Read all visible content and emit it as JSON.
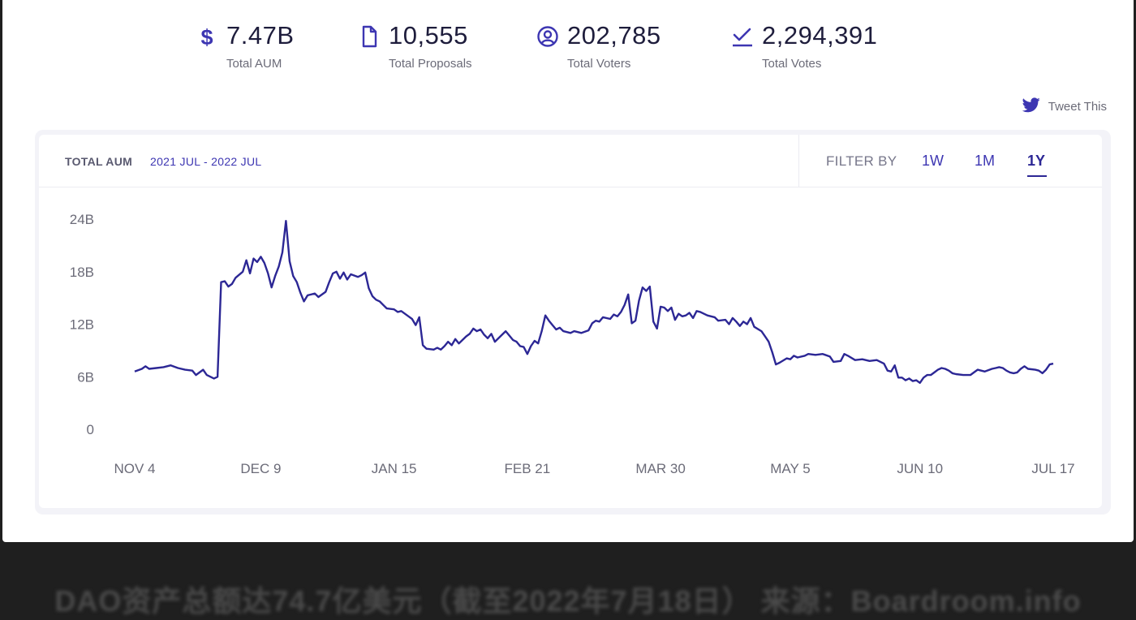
{
  "stats": [
    {
      "icon": "dollar-icon",
      "value": "7.47B",
      "label": "Total AUM"
    },
    {
      "icon": "document-icon",
      "value": "10,555",
      "label": "Total Proposals"
    },
    {
      "icon": "user-circle-icon",
      "value": "202,785",
      "label": "Total Voters"
    },
    {
      "icon": "checkmark-icon",
      "value": "2,294,391",
      "label": "Total Votes"
    }
  ],
  "tweet": {
    "label": "Tweet This",
    "icon": "twitter-icon"
  },
  "panel": {
    "title": "TOTAL AUM",
    "range": "2021 JUL - 2022 JUL",
    "filter_label": "FILTER BY",
    "filters": [
      "1W",
      "1M",
      "1Y"
    ],
    "active_filter": "1Y"
  },
  "caption": "DAO资产总额达74.7亿美元（截至2022年7月18日） 来源：Boardroom.info",
  "colors": {
    "accent": "#3d36b2",
    "line": "#2c2795",
    "text": "#1e1d3c",
    "muted": "#6b6b78"
  },
  "chart_data": {
    "type": "line",
    "title": "TOTAL AUM",
    "subtitle": "2021 JUL - 2022 JUL",
    "xlabel": "",
    "ylabel": "",
    "ylim": [
      0,
      24
    ],
    "yticks": [
      0,
      6,
      12,
      18,
      24
    ],
    "ytick_labels": [
      "0",
      "6B",
      "12B",
      "18B",
      "24B"
    ],
    "x_tick_labels": [
      "NOV 4",
      "DEC 9",
      "JAN 15",
      "FEB 21",
      "MAR 30",
      "MAY 5",
      "JUN 10",
      "JUL 17"
    ],
    "x_ticks": [
      "2021-11-04",
      "2021-12-09",
      "2022-01-15",
      "2022-02-21",
      "2022-03-30",
      "2022-05-05",
      "2022-06-10",
      "2022-07-17"
    ],
    "grid": false,
    "series": [
      {
        "values": [
          [
            "2021-11-04",
            6.6
          ],
          [
            "2021-11-06",
            6.9
          ],
          [
            "2021-11-07",
            7.2
          ],
          [
            "2021-11-08",
            6.9
          ],
          [
            "2021-11-10",
            7.0
          ],
          [
            "2021-11-12",
            7.1
          ],
          [
            "2021-11-14",
            7.3
          ],
          [
            "2021-11-16",
            7.0
          ],
          [
            "2021-11-18",
            6.8
          ],
          [
            "2021-11-20",
            6.7
          ],
          [
            "2021-11-21",
            6.2
          ],
          [
            "2021-11-23",
            6.8
          ],
          [
            "2021-11-24",
            6.2
          ],
          [
            "2021-11-26",
            5.8
          ],
          [
            "2021-11-27",
            6.0
          ],
          [
            "2021-11-28",
            16.8
          ],
          [
            "2021-11-29",
            16.9
          ],
          [
            "2021-11-30",
            16.3
          ],
          [
            "2021-12-01",
            16.6
          ],
          [
            "2021-12-02",
            17.3
          ],
          [
            "2021-12-04",
            18.0
          ],
          [
            "2021-12-05",
            19.3
          ],
          [
            "2021-12-06",
            17.8
          ],
          [
            "2021-12-07",
            19.5
          ],
          [
            "2021-12-08",
            19.1
          ],
          [
            "2021-12-09",
            19.7
          ],
          [
            "2021-12-10",
            19.0
          ],
          [
            "2021-12-11",
            17.8
          ],
          [
            "2021-12-12",
            16.2
          ],
          [
            "2021-12-13",
            17.5
          ],
          [
            "2021-12-14",
            18.6
          ],
          [
            "2021-12-15",
            20.2
          ],
          [
            "2021-12-16",
            23.8
          ],
          [
            "2021-12-17",
            19.2
          ],
          [
            "2021-12-18",
            17.5
          ],
          [
            "2021-12-19",
            16.8
          ],
          [
            "2021-12-20",
            15.6
          ],
          [
            "2021-12-21",
            14.6
          ],
          [
            "2021-12-22",
            15.3
          ],
          [
            "2021-12-24",
            15.5
          ],
          [
            "2021-12-25",
            15.1
          ],
          [
            "2021-12-27",
            15.7
          ],
          [
            "2021-12-28",
            16.8
          ],
          [
            "2021-12-29",
            17.8
          ],
          [
            "2021-12-30",
            18.0
          ],
          [
            "2021-12-31",
            17.2
          ],
          [
            "2022-01-01",
            17.9
          ],
          [
            "2022-01-02",
            17.1
          ],
          [
            "2022-01-03",
            17.7
          ],
          [
            "2022-01-05",
            17.4
          ],
          [
            "2022-01-06",
            17.6
          ],
          [
            "2022-01-07",
            17.9
          ],
          [
            "2022-01-08",
            16.1
          ],
          [
            "2022-01-09",
            15.2
          ],
          [
            "2022-01-10",
            14.8
          ],
          [
            "2022-01-11",
            14.6
          ],
          [
            "2022-01-12",
            14.2
          ],
          [
            "2022-01-13",
            13.8
          ],
          [
            "2022-01-15",
            13.7
          ],
          [
            "2022-01-16",
            13.4
          ],
          [
            "2022-01-17",
            13.5
          ],
          [
            "2022-01-19",
            12.9
          ],
          [
            "2022-01-20",
            12.6
          ],
          [
            "2022-01-21",
            11.9
          ],
          [
            "2022-01-22",
            12.8
          ],
          [
            "2022-01-23",
            9.6
          ],
          [
            "2022-01-24",
            9.2
          ],
          [
            "2022-01-26",
            9.1
          ],
          [
            "2022-01-27",
            9.3
          ],
          [
            "2022-01-28",
            9.1
          ],
          [
            "2022-01-29",
            9.5
          ],
          [
            "2022-01-30",
            10.0
          ],
          [
            "2022-01-31",
            9.6
          ],
          [
            "2022-02-01",
            10.3
          ],
          [
            "2022-02-02",
            9.8
          ],
          [
            "2022-02-04",
            10.6
          ],
          [
            "2022-02-05",
            10.9
          ],
          [
            "2022-02-06",
            11.5
          ],
          [
            "2022-02-07",
            11.2
          ],
          [
            "2022-02-08",
            11.4
          ],
          [
            "2022-02-09",
            10.8
          ],
          [
            "2022-02-10",
            10.4
          ],
          [
            "2022-02-11",
            10.9
          ],
          [
            "2022-02-12",
            10.0
          ],
          [
            "2022-02-14",
            10.8
          ],
          [
            "2022-02-15",
            11.2
          ],
          [
            "2022-02-16",
            10.7
          ],
          [
            "2022-02-17",
            10.2
          ],
          [
            "2022-02-18",
            10.0
          ],
          [
            "2022-02-19",
            9.5
          ],
          [
            "2022-02-20",
            9.4
          ],
          [
            "2022-02-21",
            8.6
          ],
          [
            "2022-02-22",
            9.5
          ],
          [
            "2022-02-23",
            10.1
          ],
          [
            "2022-02-24",
            9.8
          ],
          [
            "2022-02-25",
            11.2
          ],
          [
            "2022-02-26",
            13.0
          ],
          [
            "2022-02-27",
            12.4
          ],
          [
            "2022-02-28",
            11.9
          ],
          [
            "2022-03-01",
            11.4
          ],
          [
            "2022-03-02",
            11.6
          ],
          [
            "2022-03-03",
            11.2
          ],
          [
            "2022-03-05",
            11.0
          ],
          [
            "2022-03-06",
            11.2
          ],
          [
            "2022-03-08",
            11.0
          ],
          [
            "2022-03-10",
            11.3
          ],
          [
            "2022-03-11",
            12.1
          ],
          [
            "2022-03-12",
            12.4
          ],
          [
            "2022-03-13",
            12.3
          ],
          [
            "2022-03-14",
            12.8
          ],
          [
            "2022-03-16",
            12.6
          ],
          [
            "2022-03-17",
            13.1
          ],
          [
            "2022-03-18",
            12.9
          ],
          [
            "2022-03-19",
            13.4
          ],
          [
            "2022-03-20",
            14.2
          ],
          [
            "2022-03-21",
            15.4
          ],
          [
            "2022-03-22",
            12.1
          ],
          [
            "2022-03-23",
            12.4
          ],
          [
            "2022-03-24",
            14.7
          ],
          [
            "2022-03-25",
            16.2
          ],
          [
            "2022-03-26",
            15.8
          ],
          [
            "2022-03-27",
            16.3
          ],
          [
            "2022-03-28",
            12.3
          ],
          [
            "2022-03-29",
            11.5
          ],
          [
            "2022-03-30",
            14.0
          ],
          [
            "2022-03-31",
            13.9
          ],
          [
            "2022-04-01",
            13.5
          ],
          [
            "2022-04-02",
            13.9
          ],
          [
            "2022-04-03",
            12.5
          ],
          [
            "2022-04-04",
            13.2
          ],
          [
            "2022-04-05",
            12.9
          ],
          [
            "2022-04-06",
            13.0
          ],
          [
            "2022-04-07",
            13.3
          ],
          [
            "2022-04-08",
            12.7
          ],
          [
            "2022-04-09",
            13.5
          ],
          [
            "2022-04-10",
            13.4
          ],
          [
            "2022-04-12",
            13.0
          ],
          [
            "2022-04-14",
            12.8
          ],
          [
            "2022-04-15",
            12.4
          ],
          [
            "2022-04-17",
            12.5
          ],
          [
            "2022-04-18",
            12.0
          ],
          [
            "2022-04-19",
            12.7
          ],
          [
            "2022-04-20",
            12.3
          ],
          [
            "2022-04-21",
            11.8
          ],
          [
            "2022-04-22",
            12.3
          ],
          [
            "2022-04-23",
            12.0
          ],
          [
            "2022-04-24",
            12.7
          ],
          [
            "2022-04-25",
            11.7
          ],
          [
            "2022-04-27",
            11.2
          ],
          [
            "2022-04-28",
            10.6
          ],
          [
            "2022-04-29",
            10.0
          ],
          [
            "2022-04-30",
            8.8
          ],
          [
            "2022-05-01",
            7.4
          ],
          [
            "2022-05-02",
            7.6
          ],
          [
            "2022-05-04",
            8.1
          ],
          [
            "2022-05-05",
            8.0
          ],
          [
            "2022-05-06",
            8.4
          ],
          [
            "2022-05-07",
            8.2
          ],
          [
            "2022-05-09",
            8.4
          ],
          [
            "2022-05-10",
            8.6
          ],
          [
            "2022-05-12",
            8.5
          ],
          [
            "2022-05-14",
            8.6
          ],
          [
            "2022-05-16",
            8.3
          ],
          [
            "2022-05-17",
            7.7
          ],
          [
            "2022-05-19",
            7.8
          ],
          [
            "2022-05-20",
            8.6
          ],
          [
            "2022-05-21",
            8.4
          ],
          [
            "2022-05-23",
            7.9
          ],
          [
            "2022-05-25",
            8.0
          ],
          [
            "2022-05-27",
            7.8
          ],
          [
            "2022-05-29",
            7.9
          ],
          [
            "2022-05-31",
            7.5
          ],
          [
            "2022-06-01",
            6.7
          ],
          [
            "2022-06-02",
            6.6
          ],
          [
            "2022-06-03",
            7.3
          ],
          [
            "2022-06-04",
            5.9
          ],
          [
            "2022-06-05",
            5.9
          ],
          [
            "2022-06-06",
            5.6
          ],
          [
            "2022-06-07",
            5.8
          ],
          [
            "2022-06-08",
            5.5
          ],
          [
            "2022-06-09",
            5.6
          ],
          [
            "2022-06-10",
            5.3
          ],
          [
            "2022-06-11",
            5.9
          ],
          [
            "2022-06-12",
            6.2
          ],
          [
            "2022-06-13",
            6.2
          ],
          [
            "2022-06-14",
            6.5
          ],
          [
            "2022-06-15",
            6.8
          ],
          [
            "2022-06-16",
            7.0
          ],
          [
            "2022-06-17",
            6.9
          ],
          [
            "2022-06-18",
            6.7
          ],
          [
            "2022-06-19",
            6.4
          ],
          [
            "2022-06-20",
            6.3
          ],
          [
            "2022-06-22",
            6.2
          ],
          [
            "2022-06-24",
            6.2
          ],
          [
            "2022-06-25",
            6.5
          ],
          [
            "2022-06-26",
            6.8
          ],
          [
            "2022-06-27",
            6.7
          ],
          [
            "2022-06-28",
            6.6
          ],
          [
            "2022-06-30",
            6.9
          ],
          [
            "2022-07-01",
            7.0
          ],
          [
            "2022-07-02",
            7.1
          ],
          [
            "2022-07-03",
            7.0
          ],
          [
            "2022-07-04",
            6.7
          ],
          [
            "2022-07-05",
            6.5
          ],
          [
            "2022-07-06",
            6.4
          ],
          [
            "2022-07-07",
            6.5
          ],
          [
            "2022-07-08",
            6.9
          ],
          [
            "2022-07-09",
            7.2
          ],
          [
            "2022-07-10",
            6.9
          ],
          [
            "2022-07-12",
            6.8
          ],
          [
            "2022-07-13",
            6.7
          ],
          [
            "2022-07-14",
            6.4
          ],
          [
            "2022-07-15",
            6.8
          ],
          [
            "2022-07-16",
            7.4
          ],
          [
            "2022-07-17",
            7.5
          ]
        ]
      }
    ]
  }
}
